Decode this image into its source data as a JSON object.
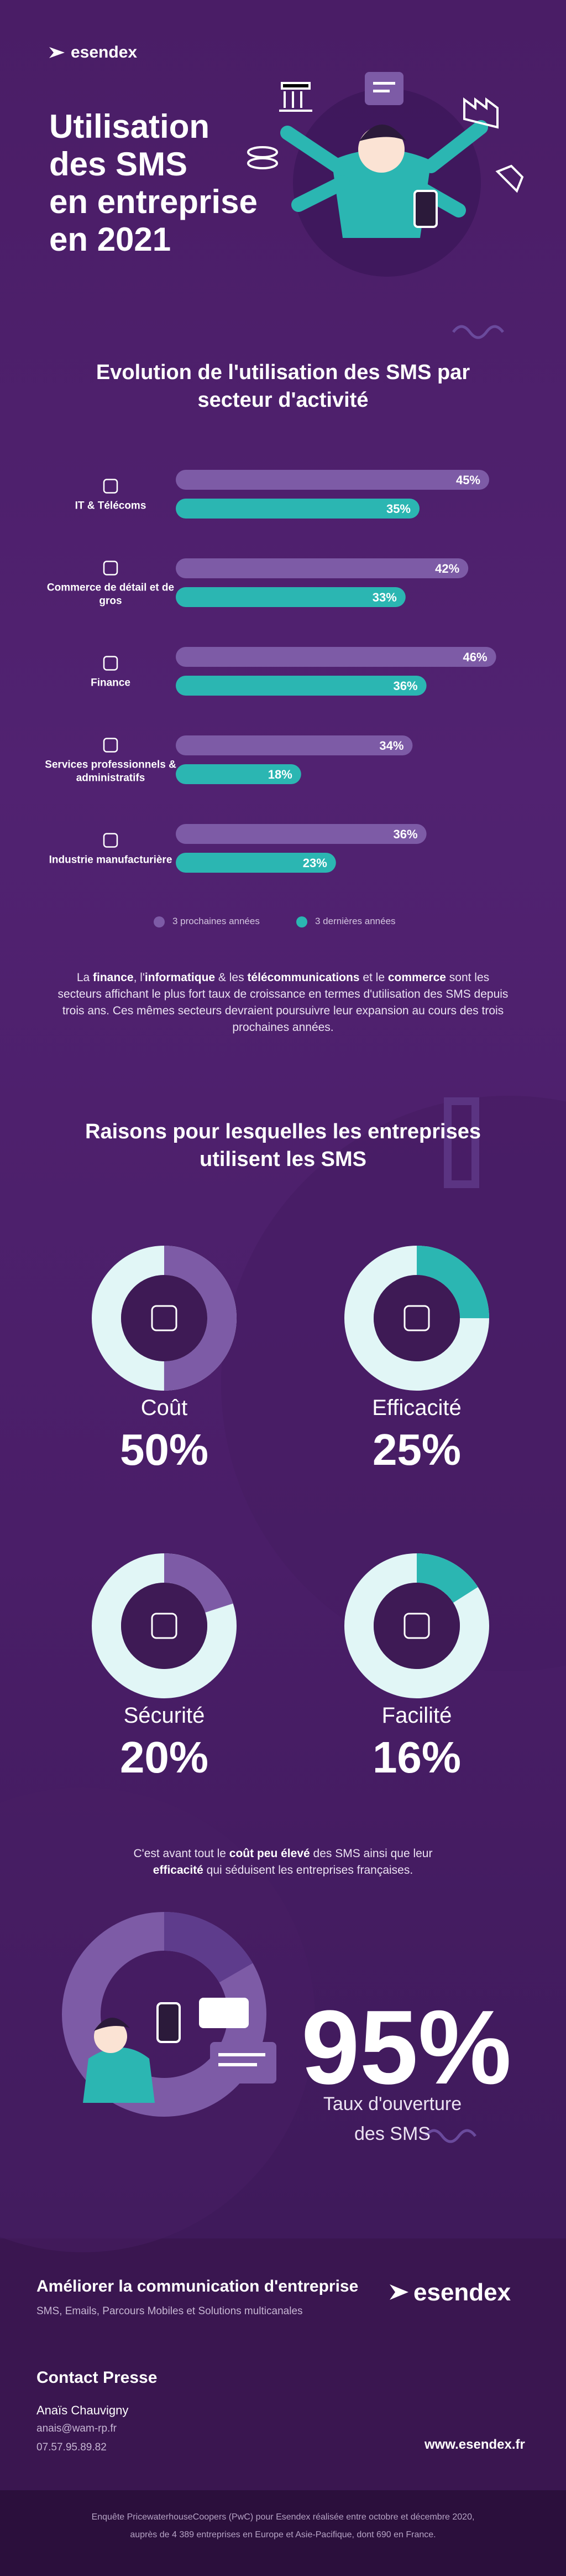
{
  "header": {
    "logo": "esendex",
    "title_lines": [
      "Utilisation",
      "des SMS",
      "en entreprise",
      "en 2021"
    ]
  },
  "chart_data": [
    {
      "type": "hbar",
      "title": "Evolution de l'utilisation des SMS par secteur d'activité",
      "categories": [
        "IT & Télécoms",
        "Commerce de détail et de gros",
        "Finance",
        "Services professionnels & administratifs",
        "Industrie manufacturière"
      ],
      "series": [
        {
          "name": "3 prochaines années",
          "color": "#7d5ba6",
          "values": [
            45,
            42,
            46,
            34,
            36
          ],
          "value_labels": [
            "45%",
            "42%",
            "46%",
            "34%",
            "36%"
          ]
        },
        {
          "name": "3 dernières années",
          "color": "#2bb6b2",
          "values": [
            35,
            33,
            36,
            18,
            23
          ],
          "value_labels": [
            "35%",
            "33%",
            "36%",
            "18%",
            "23%"
          ]
        }
      ]
    },
    {
      "type": "donut",
      "title": "Coût",
      "values": [
        50
      ],
      "value_labels": [
        "50%"
      ],
      "color": "#7d5ba6",
      "track_color": "#e1f6f6"
    },
    {
      "type": "donut",
      "title": "Efficacité",
      "values": [
        25
      ],
      "value_labels": [
        "25%"
      ],
      "color": "#2bb6b2",
      "track_color": "#e1f6f6"
    },
    {
      "type": "donut",
      "title": "Sécurité",
      "values": [
        20
      ],
      "value_labels": [
        "20%"
      ],
      "color": "#7d5ba6",
      "track_color": "#e1f6f6"
    },
    {
      "type": "donut",
      "title": "Facilité",
      "values": [
        16
      ],
      "value_labels": [
        "16%"
      ],
      "color": "#2bb6b2",
      "track_color": "#e1f6f6"
    }
  ],
  "paragraphs": {
    "sectors": [
      {
        "text": "La "
      },
      {
        "text": "finance",
        "bold": true
      },
      {
        "text": ", l'"
      },
      {
        "text": "informatique",
        "bold": true
      },
      {
        "text": " & les "
      },
      {
        "text": "télécommunications",
        "bold": true
      },
      {
        "text": " et le "
      },
      {
        "text": "commerce",
        "bold": true
      },
      {
        "text": " sont les secteurs affichant le plus fort taux de croissance en termes d'utilisation des SMS depuis trois ans. Ces mêmes secteurs devraient poursuivre leur expansion au cours des trois prochaines années."
      }
    ],
    "reasons": [
      {
        "text": "C'est avant tout le "
      },
      {
        "text": "coût peu élevé",
        "bold": true
      },
      {
        "text": " des SMS ainsi que leur "
      },
      {
        "text": "efficacité",
        "bold": true
      },
      {
        "text": " qui séduisent les entreprises françaises."
      }
    ]
  },
  "reasons": {
    "title": "Raisons pour lesquelles les entreprises utilisent les SMS"
  },
  "stat": {
    "value": 95,
    "value_label": "95%",
    "label": "Taux d'ouverture des SMS"
  },
  "footer": {
    "tagline": "Améliorer la communication d'entreprise",
    "services": "SMS, Emails, Parcours Mobiles et Solutions multicanales",
    "logo": "esendex",
    "contact_title": "Contact Presse",
    "contact_name": "Anaïs Chauvigny",
    "email": "anais@wam-rp.fr",
    "phone": "07.57.95.89.82",
    "website": "www.esendex.fr",
    "source": "Enquête PricewaterhouseCoopers (PwC) pour Esendex réalisée entre octobre et décembre 2020, auprès de 4 389 entreprises en Europe et Asie-Pacifique, dont 690 en France."
  }
}
